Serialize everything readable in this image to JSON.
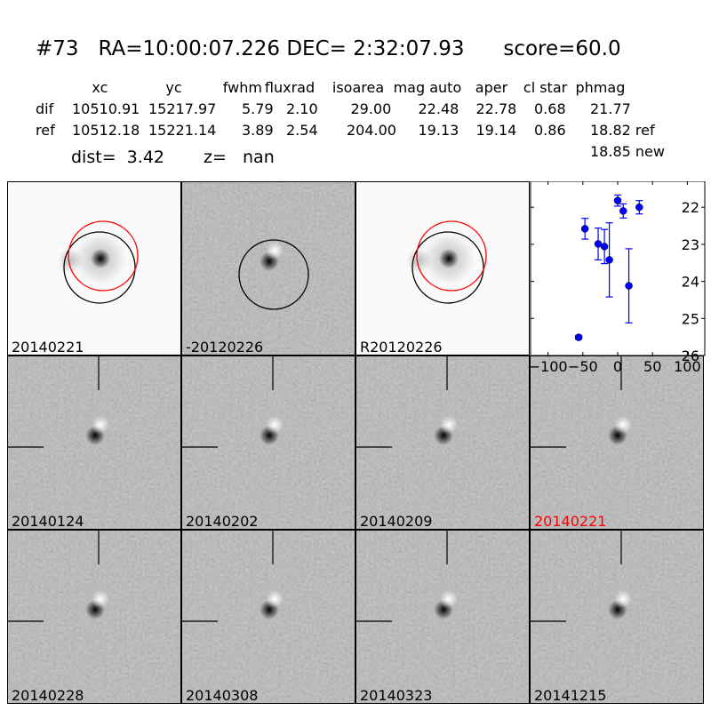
{
  "header": {
    "title": "#73   RA=10:00:07.226 DEC= 2:32:07.93      score=60.0"
  },
  "table": {
    "columns": [
      "xc",
      "yc",
      "fwhm",
      "fluxrad",
      "isoarea",
      "mag auto",
      "aper",
      "cl star",
      "phmag"
    ],
    "rows": [
      {
        "label": "dif",
        "values": [
          "10510.91",
          "15217.97",
          "5.79",
          "2.10",
          "29.00",
          "22.48",
          "22.78",
          "0.68",
          "21.77"
        ]
      },
      {
        "label": "ref",
        "values": [
          "10512.18",
          "15221.14",
          "3.89",
          "2.54",
          "204.00",
          "19.13",
          "19.14",
          "0.86",
          "18.82 ref"
        ]
      }
    ],
    "extra_phmag": "18.85 new",
    "dist": "dist=  3.42",
    "z": "z=   nan"
  },
  "stamps": [
    {
      "label": "20140221",
      "kind": "ref-image"
    },
    {
      "label": "-20120226",
      "kind": "diff"
    },
    {
      "label": "R20120226",
      "kind": "ref-image"
    },
    {
      "label": "20140124",
      "kind": "diff"
    },
    {
      "label": "20140202",
      "kind": "diff"
    },
    {
      "label": "20140209",
      "kind": "diff"
    },
    {
      "label": "20140221",
      "kind": "diff",
      "highlight": true
    },
    {
      "label": "20140228",
      "kind": "diff"
    },
    {
      "label": "20140308",
      "kind": "diff"
    },
    {
      "label": "20140323",
      "kind": "diff"
    },
    {
      "label": "20141215",
      "kind": "diff"
    }
  ],
  "colors": {
    "highlight": "#ff0000",
    "points": "#0000ff",
    "circle_red": "#ff0000",
    "circle_black": "#000000"
  },
  "chart_data": {
    "type": "scatter",
    "error_bars": true,
    "x": [
      -56,
      -47,
      -28,
      -19,
      -12,
      0,
      8,
      16,
      31
    ],
    "y": [
      25.51,
      22.58,
      22.99,
      23.06,
      23.42,
      21.82,
      22.1,
      24.12,
      22.0
    ],
    "yerr": [
      0.05,
      0.28,
      0.43,
      0.46,
      1.0,
      0.15,
      0.19,
      1.0,
      0.18
    ],
    "xlim": [
      -125,
      125
    ],
    "ylim": [
      26,
      21.3
    ],
    "y_inverted": true,
    "xticks": [
      -100,
      -50,
      0,
      50,
      100
    ],
    "yticks": [
      22,
      23,
      24,
      25,
      26
    ],
    "xtick_labels": [
      "−100",
      "−50",
      "0",
      "50",
      "100"
    ],
    "ytick_labels": [
      "22",
      "23",
      "24",
      "25",
      "26"
    ],
    "grid": false
  }
}
